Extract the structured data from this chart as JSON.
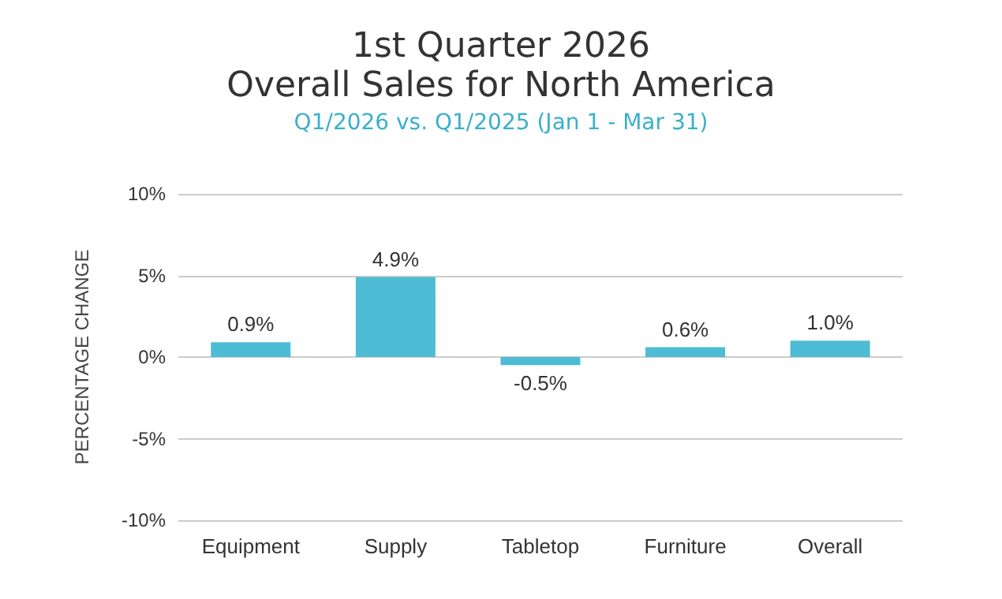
{
  "chart_data": {
    "type": "bar",
    "title": "1st Quarter 2026\nOverall Sales for North America",
    "subtitle": "Q1/2026 vs. Q1/2025 (Jan 1 - Mar 31)",
    "ylabel": "PERCENTAGE CHANGE",
    "categories": [
      "Equipment",
      "Supply",
      "Tabletop",
      "Furniture",
      "Overall"
    ],
    "values": [
      0.9,
      4.9,
      -0.5,
      0.6,
      1.0
    ],
    "value_labels": [
      "0.9%",
      "4.9%",
      "-0.5%",
      "0.6%",
      "1.0%"
    ],
    "color": "#4dbcd4",
    "ylim": [
      -10,
      10
    ],
    "yticks": [
      {
        "value": -10,
        "label": "-10%"
      },
      {
        "value": -5,
        "label": "-5%"
      },
      {
        "value": 0,
        "label": "0%"
      },
      {
        "value": 5,
        "label": "5%"
      },
      {
        "value": 10,
        "label": "10%"
      }
    ],
    "grid": "y"
  }
}
